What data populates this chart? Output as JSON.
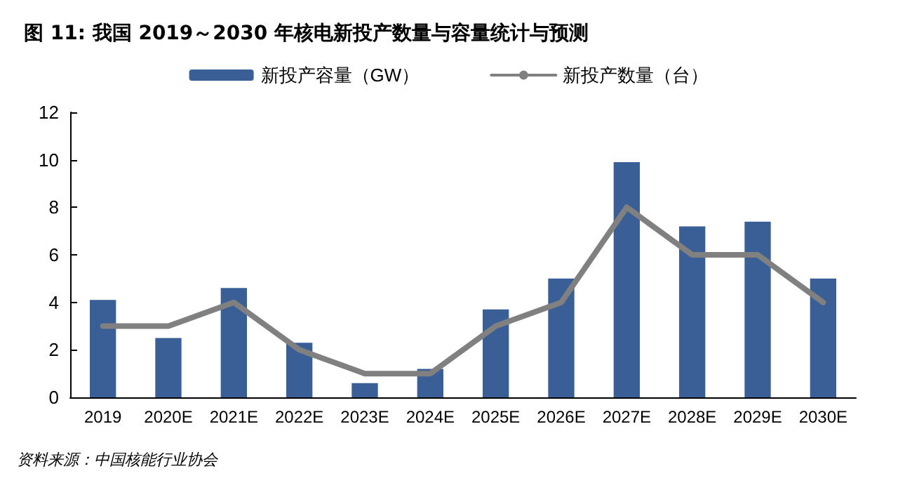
{
  "chart_data": {
    "type": "bar",
    "title": "图 11: 我国 2019～2030 年核电新投产数量与容量统计与预测",
    "categories": [
      "2019",
      "2020E",
      "2021E",
      "2022E",
      "2023E",
      "2024E",
      "2025E",
      "2026E",
      "2027E",
      "2028E",
      "2029E",
      "2030E"
    ],
    "series": [
      {
        "name": "新投产容量（GW）",
        "color": "#3a5f97",
        "values": [
          4.1,
          2.5,
          4.6,
          2.3,
          0.6,
          1.2,
          3.7,
          5.0,
          9.9,
          7.2,
          7.4,
          5.0
        ]
      },
      {
        "name": "新投产数量（台）",
        "type": "line",
        "color": "#808080",
        "values": [
          3,
          3,
          4,
          2,
          1,
          1,
          3,
          4,
          8,
          6,
          6,
          4
        ]
      }
    ],
    "ylim": [
      0,
      12
    ],
    "yticks": [
      0,
      2,
      4,
      6,
      8,
      10,
      12
    ],
    "grid": false,
    "legend": "top",
    "marker": "none",
    "line_style": "solid",
    "annotations": [
      "资料来源：中国核能行业协会"
    ]
  }
}
